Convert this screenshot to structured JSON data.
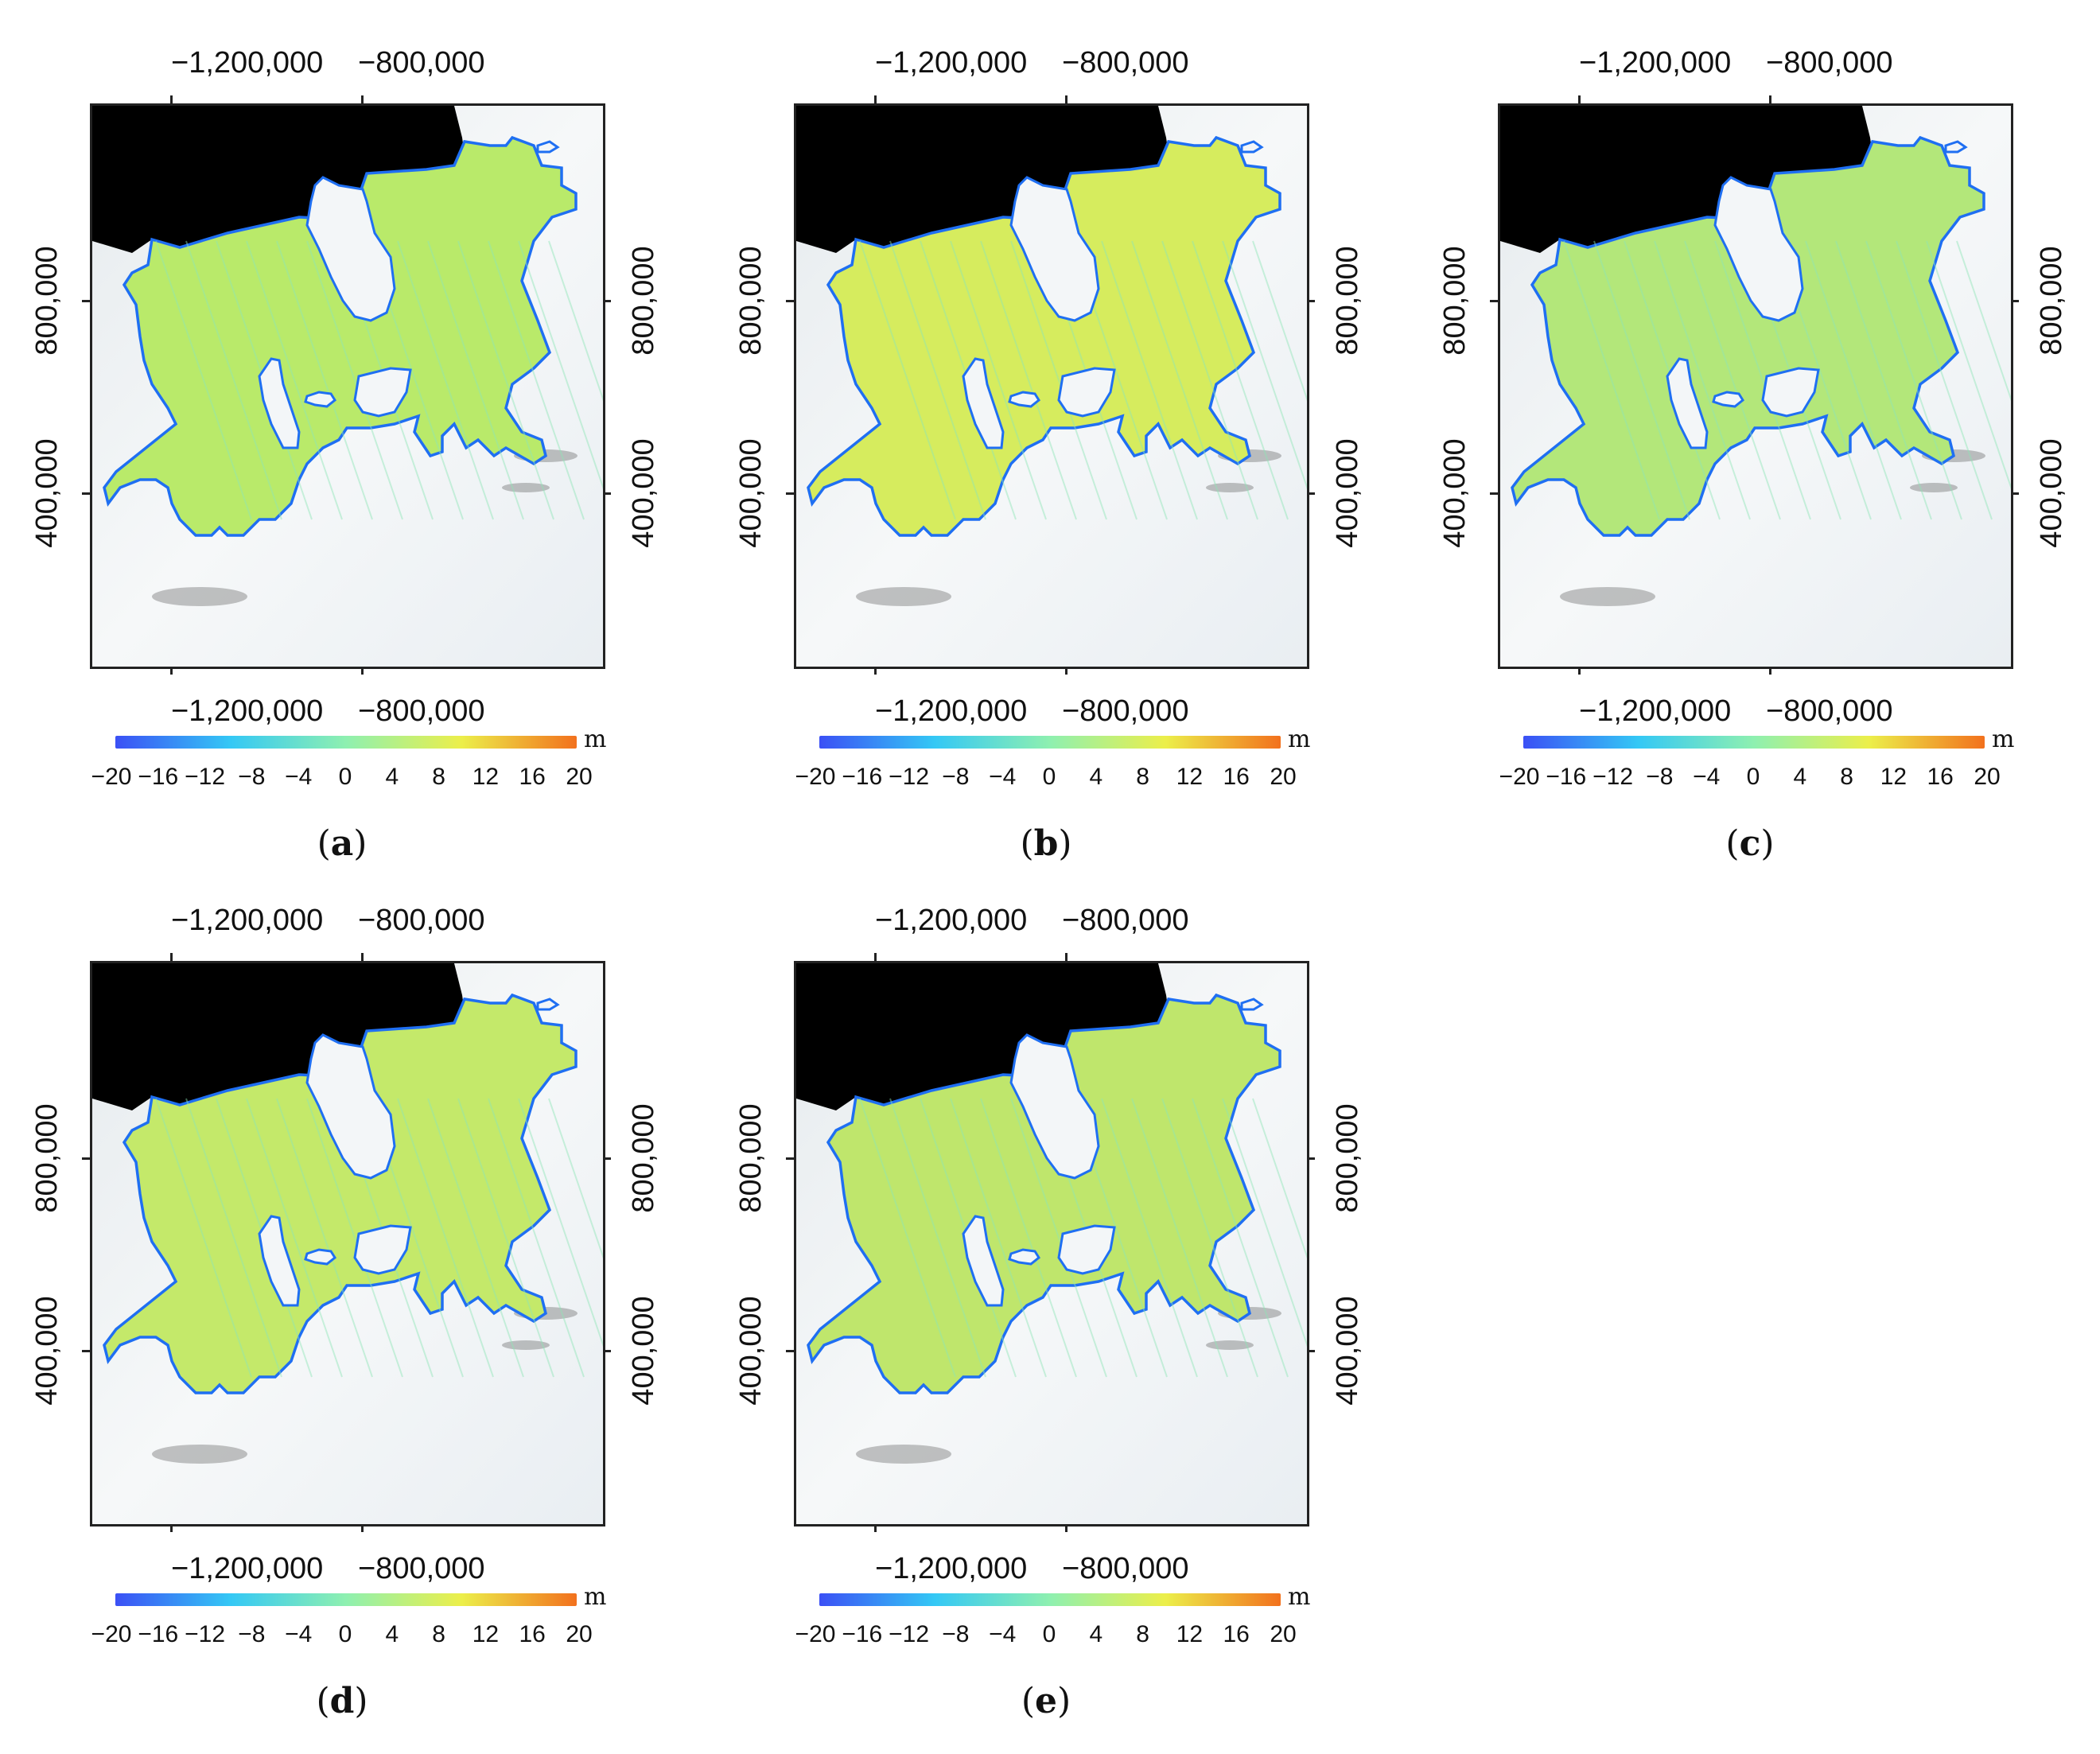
{
  "panels": [
    {
      "id": "a",
      "caption_open": "(",
      "caption_letter": "a",
      "caption_close": ")"
    },
    {
      "id": "b",
      "caption_open": "(",
      "caption_letter": "b",
      "caption_close": ")"
    },
    {
      "id": "c",
      "caption_open": "(",
      "caption_letter": "c",
      "caption_close": ")"
    },
    {
      "id": "d",
      "caption_open": "(",
      "caption_letter": "d",
      "caption_close": ")"
    },
    {
      "id": "e",
      "caption_open": "(",
      "caption_letter": "e",
      "caption_close": ")"
    }
  ],
  "axes": {
    "x_ticks": [
      "−1,200,000",
      "−800,000"
    ],
    "y_ticks": [
      "800,000",
      "400,000"
    ]
  },
  "colorbar": {
    "unit": "m",
    "ticks": [
      "−20",
      "−16",
      "−12",
      "−8",
      "−4",
      "0",
      "4",
      "8",
      "12",
      "16",
      "20"
    ],
    "range": [
      -20,
      20
    ],
    "colors": [
      "#3b50f5",
      "#34c8f5",
      "#8ef0b0",
      "#ecef4a",
      "#f2711d"
    ]
  },
  "map_style": {
    "ocean_color": "#000000",
    "land_color": "#f1f4f6",
    "shelf_outline_color": "#1f6ff2",
    "panel_fill_colors": [
      "#b9ea6a",
      "#d6ec5e",
      "#b3e77a",
      "#c4e96a",
      "#bfe66c"
    ]
  }
}
